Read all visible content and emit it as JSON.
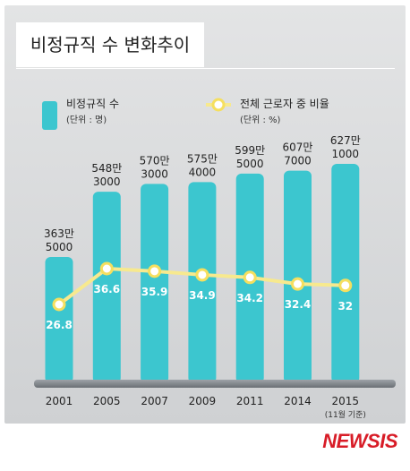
{
  "title": "비정규직 수 변화추이",
  "legend": {
    "bar_label": "비정규직 수",
    "bar_unit": "(단위 : 명)",
    "line_label": "전체 근로자 중 비율",
    "line_unit": "(단위 : %)"
  },
  "colors": {
    "bar": "#3cc6cf",
    "line": "#f7e98e",
    "marker_fill": "#ffffff",
    "marker_stroke": "#f5df5f",
    "ratio_text": "#ffffff",
    "watermark": "#d81c27"
  },
  "watermark": "NEWSIS",
  "chart_data": {
    "type": "bar",
    "categories": [
      "2001",
      "2005",
      "2007",
      "2009",
      "2011",
      "2014",
      "2015"
    ],
    "category_notes": [
      "",
      "",
      "",
      "",
      "",
      "",
      "(11월 기준)"
    ],
    "bar_labels": [
      [
        "363만",
        "5000"
      ],
      [
        "548만",
        "3000"
      ],
      [
        "570만",
        "3000"
      ],
      [
        "575만",
        "4000"
      ],
      [
        "599만",
        "5000"
      ],
      [
        "607만",
        "7000"
      ],
      [
        "627만",
        "1000"
      ]
    ],
    "series": [
      {
        "name": "비정규직 수",
        "type": "bar",
        "values": [
          3635000,
          5483000,
          5703000,
          5754000,
          5995000,
          6077000,
          6271000
        ]
      },
      {
        "name": "전체 근로자 중 비율",
        "type": "line",
        "values": [
          26.8,
          36.6,
          35.9,
          34.9,
          34.2,
          32.4,
          32
        ]
      }
    ],
    "ratio_labels": [
      "26.8",
      "36.6",
      "35.9",
      "34.9",
      "34.2",
      "32.4",
      "32"
    ],
    "grid": false,
    "legend_position": "top"
  }
}
